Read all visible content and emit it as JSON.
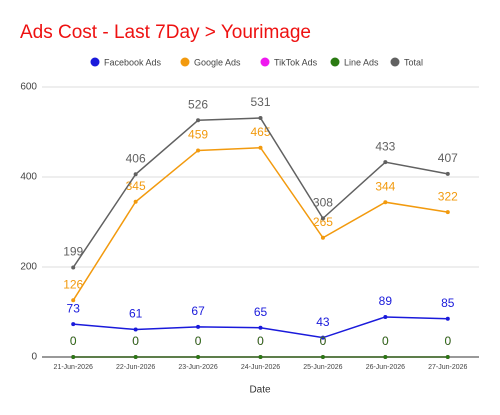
{
  "chart_data": {
    "type": "line",
    "title": "Ads Cost - Last 7Day > Yourimage",
    "x_label": "Date",
    "categories": [
      "21-Jun-2026",
      "22-Jun-2026",
      "23-Jun-2026",
      "24-Jun-2026",
      "25-Jun-2026",
      "26-Jun-2026",
      "27-Jun-2026"
    ],
    "series": [
      {
        "name": "Facebook Ads",
        "color": "#1a1adb",
        "values": [
          73,
          61,
          67,
          65,
          43,
          89,
          85
        ]
      },
      {
        "name": "Google Ads",
        "color": "#f29a0e",
        "values": [
          126,
          345,
          459,
          465,
          265,
          344,
          322
        ]
      },
      {
        "name": "TikTok Ads",
        "color": "#ef18ef",
        "values": [
          0,
          0,
          0,
          0,
          0,
          0,
          0
        ]
      },
      {
        "name": "Line Ads",
        "color": "#2a7a12",
        "values": [
          0,
          0,
          0,
          0,
          0,
          0,
          0
        ]
      },
      {
        "name": "Total",
        "color": "#616161",
        "values": [
          199,
          406,
          526,
          531,
          308,
          433,
          407
        ]
      }
    ],
    "ylim": [
      0,
      600
    ],
    "yticks": [
      0,
      200,
      400,
      600
    ],
    "grid": true
  }
}
